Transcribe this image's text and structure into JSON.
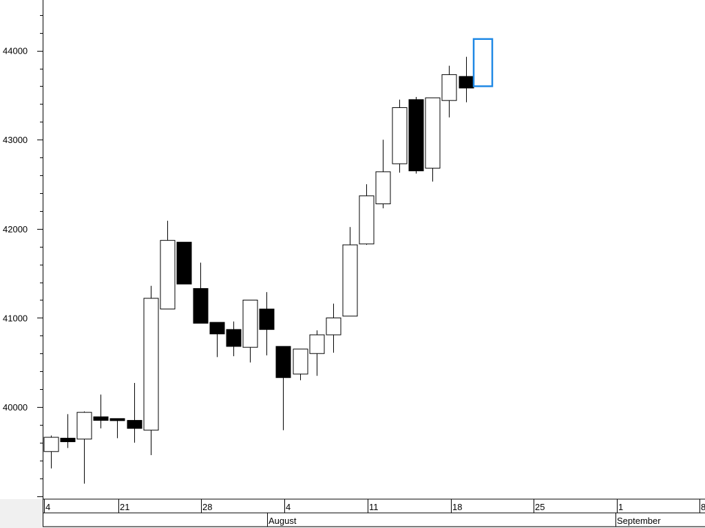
{
  "chart_data": {
    "type": "candlestick",
    "y_ticks": [
      "40000",
      "41000",
      "42000",
      "43000",
      "44000"
    ],
    "ylim": [
      39000,
      44500
    ],
    "x_axis": {
      "day_ticks": [
        "4",
        "21",
        "28",
        "4",
        "11",
        "18",
        "25",
        "1",
        "8"
      ],
      "month_labels": [
        "August",
        "September"
      ]
    },
    "candles": [
      {
        "open": 39500,
        "high": 39680,
        "low": 39310,
        "close": 39660
      },
      {
        "open": 39650,
        "high": 39920,
        "low": 39540,
        "close": 39610
      },
      {
        "open": 39640,
        "high": 39950,
        "low": 39140,
        "close": 39940
      },
      {
        "open": 39890,
        "high": 40140,
        "low": 39760,
        "close": 39850
      },
      {
        "open": 39870,
        "high": 39870,
        "low": 39650,
        "close": 39850
      },
      {
        "open": 39850,
        "high": 40270,
        "low": 39600,
        "close": 39760
      },
      {
        "open": 39740,
        "high": 41360,
        "low": 39460,
        "close": 41220
      },
      {
        "open": 41100,
        "high": 42090,
        "low": 41100,
        "close": 41870
      },
      {
        "open": 41850,
        "high": 41850,
        "low": 41380,
        "close": 41380
      },
      {
        "open": 41330,
        "high": 41620,
        "low": 40940,
        "close": 40940
      },
      {
        "open": 40950,
        "high": 40950,
        "low": 40560,
        "close": 40820
      },
      {
        "open": 40870,
        "high": 40960,
        "low": 40570,
        "close": 40680
      },
      {
        "open": 40670,
        "high": 41200,
        "low": 40500,
        "close": 41200
      },
      {
        "open": 41100,
        "high": 41290,
        "low": 40580,
        "close": 40870
      },
      {
        "open": 40680,
        "high": 40680,
        "low": 39740,
        "close": 40330
      },
      {
        "open": 40370,
        "high": 40650,
        "low": 40300,
        "close": 40650
      },
      {
        "open": 40600,
        "high": 40860,
        "low": 40350,
        "close": 40810
      },
      {
        "open": 40810,
        "high": 41160,
        "low": 40610,
        "close": 41000
      },
      {
        "open": 41020,
        "high": 42020,
        "low": 41020,
        "close": 41820
      },
      {
        "open": 41830,
        "high": 42500,
        "low": 41820,
        "close": 42370
      },
      {
        "open": 42280,
        "high": 43000,
        "low": 42230,
        "close": 42640
      },
      {
        "open": 42730,
        "high": 43450,
        "low": 42630,
        "close": 43360
      },
      {
        "open": 43450,
        "high": 43480,
        "low": 42620,
        "close": 42650
      },
      {
        "open": 42680,
        "high": 43470,
        "low": 42530,
        "close": 43470
      },
      {
        "open": 43440,
        "high": 43830,
        "low": 43250,
        "close": 43730
      },
      {
        "open": 43710,
        "high": 43930,
        "low": 43420,
        "close": 43580
      }
    ],
    "highlight_box": {
      "low": 43600,
      "high": 44130
    },
    "colors": {
      "up_fill": "#ffffff",
      "down_fill": "#000000",
      "outline": "#000000",
      "highlight": "#1e88e5",
      "axis_band": "#f0f0f0"
    }
  }
}
